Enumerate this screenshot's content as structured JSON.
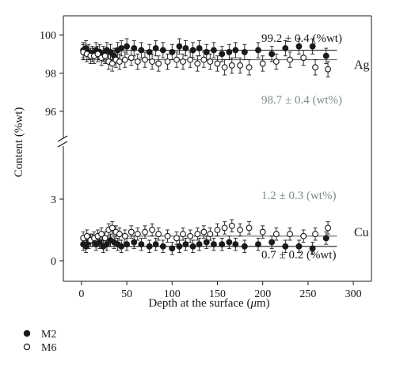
{
  "chart_data": {
    "type": "scatter",
    "xlabel_main": "Depth at the surface (",
    "xlabel_unit": "μ",
    "xlabel_end": "m)",
    "ylabel": "Content (%wt)",
    "xlim": [
      -20,
      320
    ],
    "xticks": [
      0,
      50,
      100,
      150,
      200,
      250,
      300
    ],
    "ylim_upper": [
      95,
      101
    ],
    "ylim_lower": [
      -1,
      5
    ],
    "yticks_upper": [
      96,
      98,
      100
    ],
    "yticks_lower": [
      0,
      3
    ],
    "axis_break": "y",
    "series": [
      {
        "name": "M2",
        "marker": "filled-circle",
        "ag_x": [
          2,
          5,
          8,
          12,
          16,
          20,
          24,
          28,
          32,
          36,
          40,
          44,
          50,
          58,
          66,
          75,
          82,
          90,
          100,
          108,
          115,
          123,
          130,
          138,
          146,
          155,
          163,
          170,
          180,
          195,
          210,
          225,
          240,
          255,
          270
        ],
        "ag_y": [
          99.2,
          99.3,
          99.1,
          99.0,
          99.2,
          99.1,
          99.0,
          99.2,
          99.1,
          98.9,
          99.2,
          99.3,
          99.4,
          99.3,
          99.2,
          99.1,
          99.3,
          99.2,
          99.1,
          99.4,
          99.3,
          99.2,
          99.3,
          99.1,
          99.2,
          99.0,
          99.1,
          99.2,
          99.1,
          99.2,
          99.0,
          99.3,
          99.4,
          99.4,
          98.9
        ],
        "ag_err": [
          0.4,
          0.4,
          0.4,
          0.4,
          0.4,
          0.4,
          0.4,
          0.4,
          0.4,
          0.4,
          0.4,
          0.4,
          0.4,
          0.4,
          0.4,
          0.4,
          0.4,
          0.4,
          0.4,
          0.4,
          0.4,
          0.4,
          0.4,
          0.4,
          0.4,
          0.4,
          0.4,
          0.4,
          0.4,
          0.4,
          0.4,
          0.4,
          0.4,
          0.4,
          0.4
        ],
        "cu_x": [
          2,
          5,
          8,
          12,
          16,
          20,
          24,
          28,
          32,
          36,
          40,
          44,
          50,
          58,
          66,
          75,
          82,
          90,
          100,
          108,
          115,
          123,
          130,
          138,
          146,
          155,
          163,
          170,
          180,
          195,
          210,
          225,
          240,
          255,
          270
        ],
        "cu_y": [
          0.8,
          0.7,
          0.9,
          1.0,
          0.8,
          0.9,
          0.7,
          0.8,
          1.0,
          0.9,
          0.8,
          0.7,
          0.8,
          0.9,
          0.8,
          0.7,
          0.8,
          0.7,
          0.6,
          0.7,
          0.8,
          0.7,
          0.8,
          0.9,
          0.8,
          0.8,
          0.9,
          0.8,
          0.7,
          0.8,
          0.9,
          0.7,
          0.7,
          0.6,
          1.1
        ],
        "cu_err": [
          0.3,
          0.3,
          0.3,
          0.3,
          0.3,
          0.3,
          0.3,
          0.3,
          0.3,
          0.3,
          0.3,
          0.3,
          0.3,
          0.3,
          0.3,
          0.3,
          0.3,
          0.3,
          0.3,
          0.3,
          0.3,
          0.3,
          0.3,
          0.3,
          0.3,
          0.3,
          0.3,
          0.3,
          0.3,
          0.3,
          0.3,
          0.3,
          0.3,
          0.3,
          0.3
        ]
      },
      {
        "name": "M6",
        "marker": "open-circle",
        "ag_x": [
          2,
          6,
          10,
          14,
          18,
          22,
          26,
          30,
          34,
          38,
          42,
          48,
          55,
          62,
          70,
          78,
          85,
          95,
          105,
          112,
          120,
          128,
          135,
          142,
          150,
          158,
          166,
          175,
          185,
          200,
          215,
          230,
          245,
          258,
          272
        ],
        "ag_y": [
          99.1,
          99.0,
          98.9,
          98.9,
          99.0,
          98.8,
          98.9,
          98.6,
          98.5,
          98.7,
          98.6,
          98.7,
          98.8,
          98.6,
          98.7,
          98.6,
          98.5,
          98.6,
          98.7,
          98.6,
          98.7,
          98.5,
          98.7,
          98.6,
          98.5,
          98.3,
          98.4,
          98.4,
          98.3,
          98.5,
          98.6,
          98.7,
          98.8,
          98.3,
          98.2
        ],
        "ag_err": [
          0.4,
          0.4,
          0.4,
          0.4,
          0.4,
          0.4,
          0.4,
          0.4,
          0.4,
          0.4,
          0.4,
          0.4,
          0.4,
          0.4,
          0.4,
          0.4,
          0.4,
          0.4,
          0.4,
          0.4,
          0.4,
          0.4,
          0.4,
          0.4,
          0.4,
          0.4,
          0.4,
          0.4,
          0.4,
          0.4,
          0.4,
          0.4,
          0.4,
          0.4,
          0.4
        ],
        "cu_x": [
          2,
          6,
          10,
          14,
          18,
          22,
          26,
          30,
          34,
          38,
          42,
          48,
          55,
          62,
          70,
          78,
          85,
          95,
          105,
          112,
          120,
          128,
          135,
          142,
          150,
          158,
          166,
          175,
          185,
          200,
          215,
          230,
          245,
          258,
          272
        ],
        "cu_y": [
          1.1,
          1.2,
          1.0,
          1.1,
          1.2,
          1.3,
          1.1,
          1.5,
          1.6,
          1.4,
          1.3,
          1.2,
          1.4,
          1.3,
          1.4,
          1.5,
          1.3,
          1.2,
          1.1,
          1.3,
          1.2,
          1.3,
          1.4,
          1.3,
          1.5,
          1.6,
          1.7,
          1.5,
          1.6,
          1.4,
          1.3,
          1.3,
          1.2,
          1.3,
          1.6
        ],
        "cu_err": [
          0.3,
          0.3,
          0.3,
          0.3,
          0.3,
          0.3,
          0.3,
          0.3,
          0.3,
          0.3,
          0.3,
          0.3,
          0.3,
          0.3,
          0.3,
          0.3,
          0.3,
          0.3,
          0.3,
          0.3,
          0.3,
          0.3,
          0.3,
          0.3,
          0.3,
          0.3,
          0.3,
          0.3,
          0.3,
          0.3,
          0.3,
          0.3,
          0.3,
          0.3,
          0.3
        ]
      }
    ],
    "mean_lines": [
      {
        "element": "Ag",
        "series": "M2",
        "value": 99.2
      },
      {
        "element": "Ag",
        "series": "M6",
        "value": 98.7
      },
      {
        "element": "Cu",
        "series": "M2",
        "value": 0.7
      },
      {
        "element": "Cu",
        "series": "M6",
        "value": 1.2
      }
    ],
    "annotations": [
      {
        "text": "99.2 ± 0.4 (%wt)",
        "color": "#1a1a1a"
      },
      {
        "text": "98.7 ± 0.4 (wt%)",
        "color": "#7d8c8c"
      },
      {
        "text": "1.2 ± 0.3 (wt%)",
        "color": "#7d8c8c"
      },
      {
        "text": "0.7 ± 0.2 (%wt)",
        "color": "#1a1a1a"
      }
    ],
    "element_labels": [
      "Ag",
      "Cu"
    ],
    "legend": [
      {
        "name": "M2",
        "marker": "filled-circle"
      },
      {
        "name": "M6",
        "marker": "open-circle"
      }
    ],
    "legend_placement": "bottom-left",
    "grid": false
  }
}
